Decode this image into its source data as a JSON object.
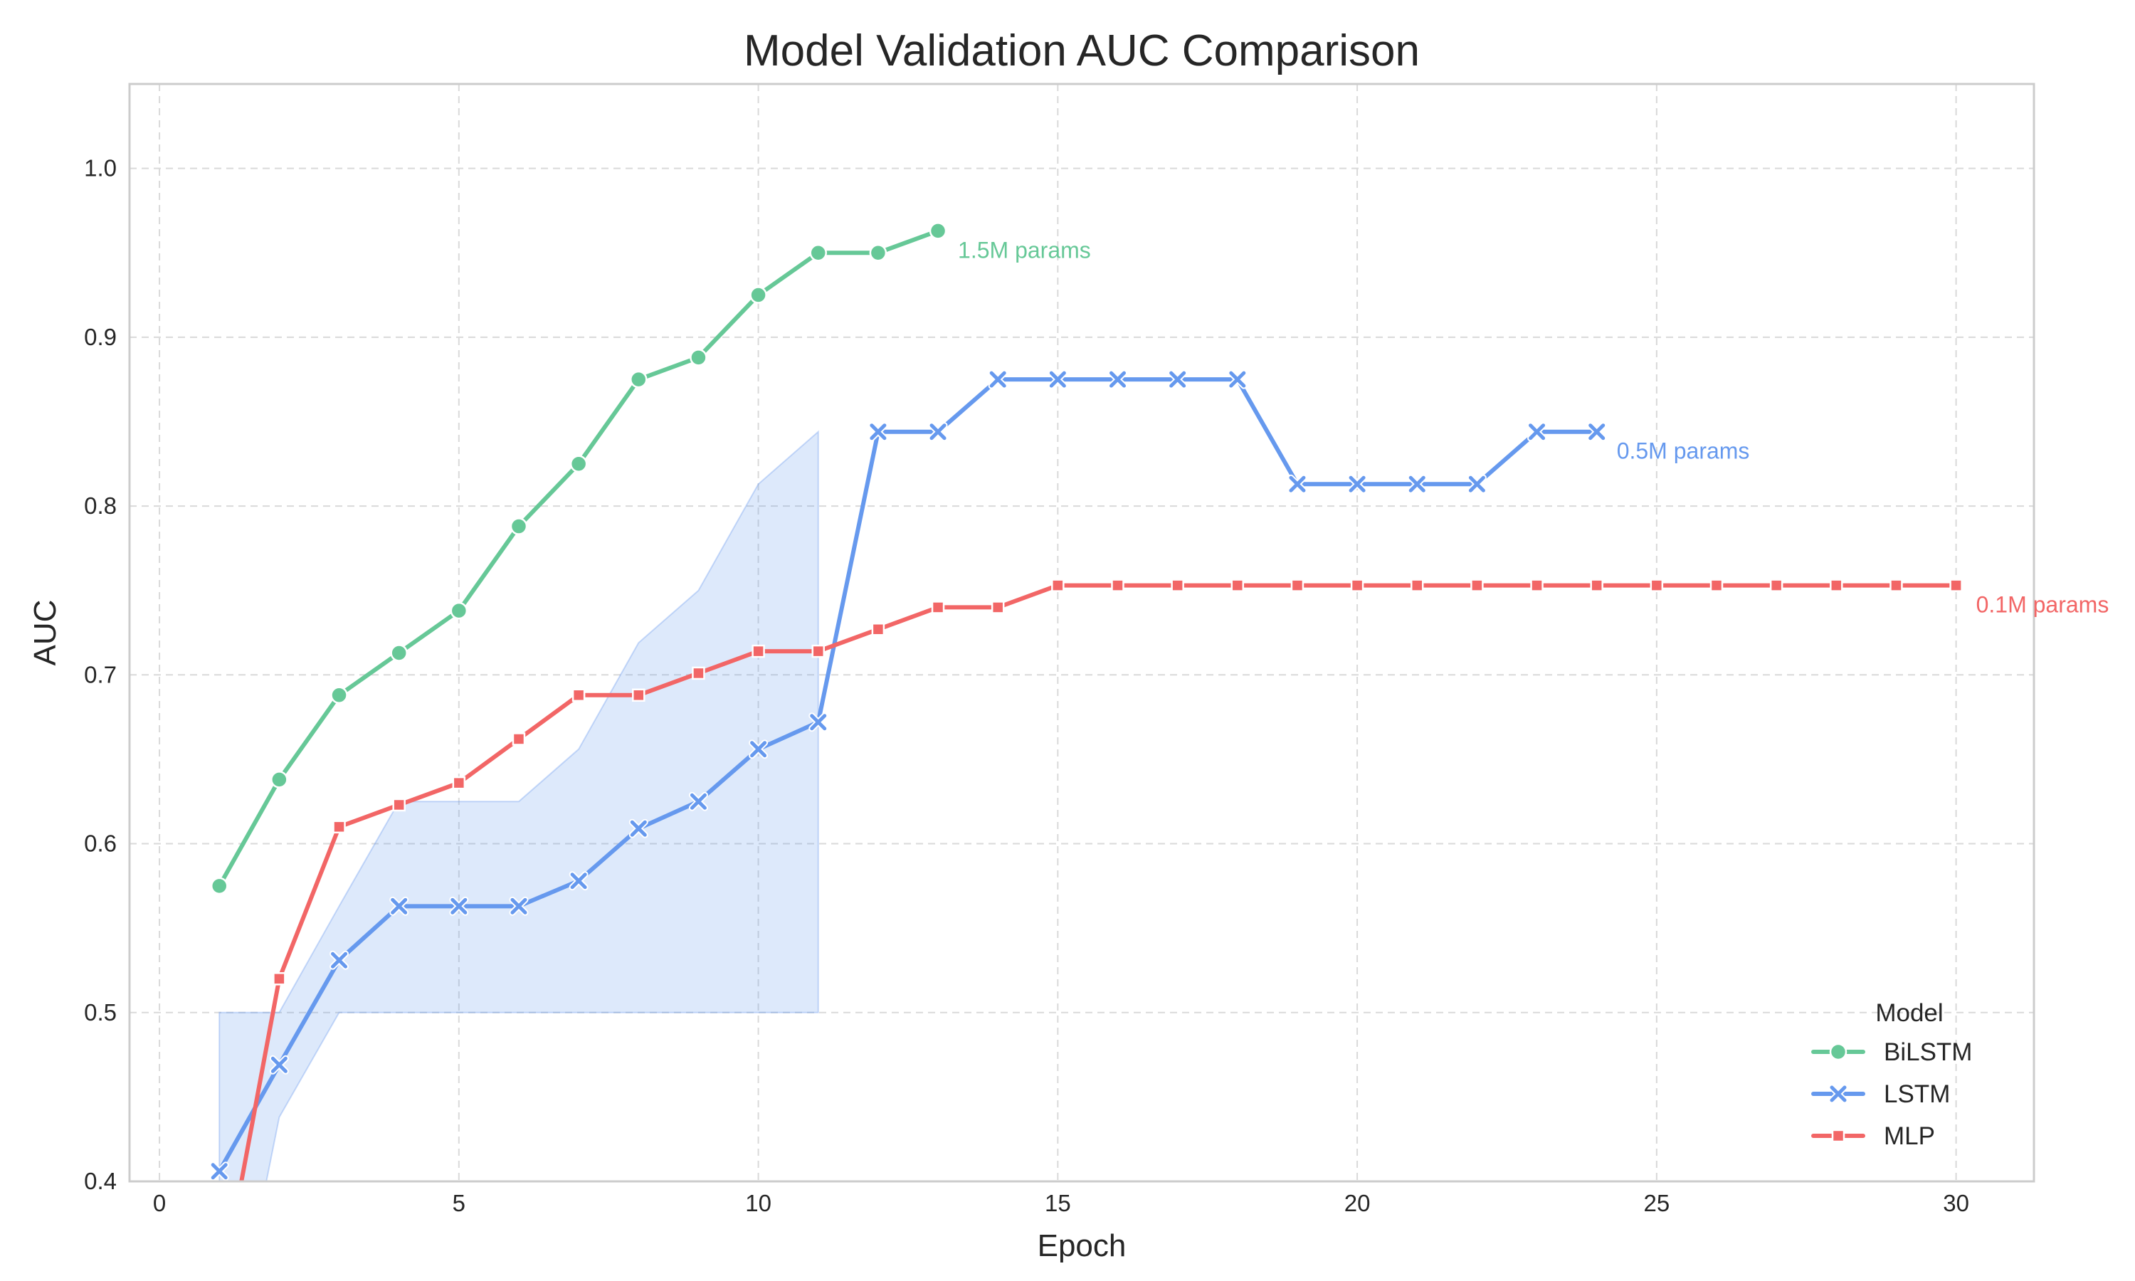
{
  "chart_data": {
    "type": "line",
    "title": "Model Validation AUC Comparison",
    "xlabel": "Epoch",
    "ylabel": "AUC",
    "xlim": [
      -0.5,
      31.3
    ],
    "ylim": [
      0.4,
      1.05
    ],
    "xticks": [
      0,
      5,
      10,
      15,
      20,
      25,
      30
    ],
    "yticks": [
      0.4,
      0.5,
      0.6,
      0.7,
      0.8,
      0.9,
      1.0
    ],
    "xtick_labels": [
      "0",
      "5",
      "10",
      "15",
      "20",
      "25",
      "30"
    ],
    "ytick_labels": [
      "0.4",
      "0.5",
      "0.6",
      "0.7",
      "0.8",
      "0.9",
      "1.0"
    ],
    "grid": true,
    "legend": {
      "title": "Model",
      "position": "lower-right"
    },
    "series": [
      {
        "name": "BiLSTM",
        "color": "#66c897",
        "marker": "circle",
        "x": [
          1,
          2,
          3,
          4,
          5,
          6,
          7,
          8,
          9,
          10,
          11,
          12,
          13
        ],
        "values": [
          0.575,
          0.638,
          0.688,
          0.713,
          0.738,
          0.788,
          0.825,
          0.875,
          0.888,
          0.925,
          0.95,
          0.95,
          0.963
        ],
        "annotation": "1.5M params"
      },
      {
        "name": "LSTM",
        "color": "#6699ee",
        "marker": "x",
        "x": [
          1,
          2,
          3,
          4,
          5,
          6,
          7,
          8,
          9,
          10,
          11,
          12,
          13,
          14,
          15,
          16,
          17,
          18,
          19,
          20,
          21,
          22,
          23,
          24
        ],
        "values": [
          0.406,
          0.469,
          0.531,
          0.563,
          0.563,
          0.563,
          0.578,
          0.609,
          0.625,
          0.656,
          0.672,
          0.844,
          0.844,
          0.875,
          0.875,
          0.875,
          0.875,
          0.875,
          0.813,
          0.813,
          0.813,
          0.813,
          0.844,
          0.844
        ],
        "annotation": "0.5M params",
        "band": {
          "x": [
            1,
            1.7,
            2,
            3,
            4,
            5,
            6,
            7,
            8,
            9,
            10,
            11
          ],
          "lower": [
            0.385,
            0.385,
            0.438,
            0.5,
            0.5,
            0.5,
            0.5,
            0.5,
            0.5,
            0.5,
            0.5,
            0.5
          ],
          "upper": [
            0.5,
            0.5,
            0.5,
            0.563,
            0.625,
            0.625,
            0.625,
            0.656,
            0.719,
            0.75,
            0.813,
            0.844
          ]
        }
      },
      {
        "name": "MLP",
        "color": "#f26666",
        "marker": "square",
        "x": [
          1,
          2,
          3,
          4,
          5,
          6,
          7,
          8,
          9,
          10,
          11,
          12,
          13,
          14,
          15,
          16,
          17,
          18,
          19,
          20,
          21,
          22,
          23,
          24,
          25,
          26,
          27,
          28,
          29,
          30
        ],
        "values": [
          0.33,
          0.52,
          0.61,
          0.623,
          0.636,
          0.662,
          0.688,
          0.688,
          0.701,
          0.714,
          0.714,
          0.727,
          0.74,
          0.74,
          0.753,
          0.753,
          0.753,
          0.753,
          0.753,
          0.753,
          0.753,
          0.753,
          0.753,
          0.753,
          0.753,
          0.753,
          0.753,
          0.753,
          0.753,
          0.753
        ],
        "annotation": "0.1M params"
      }
    ]
  }
}
